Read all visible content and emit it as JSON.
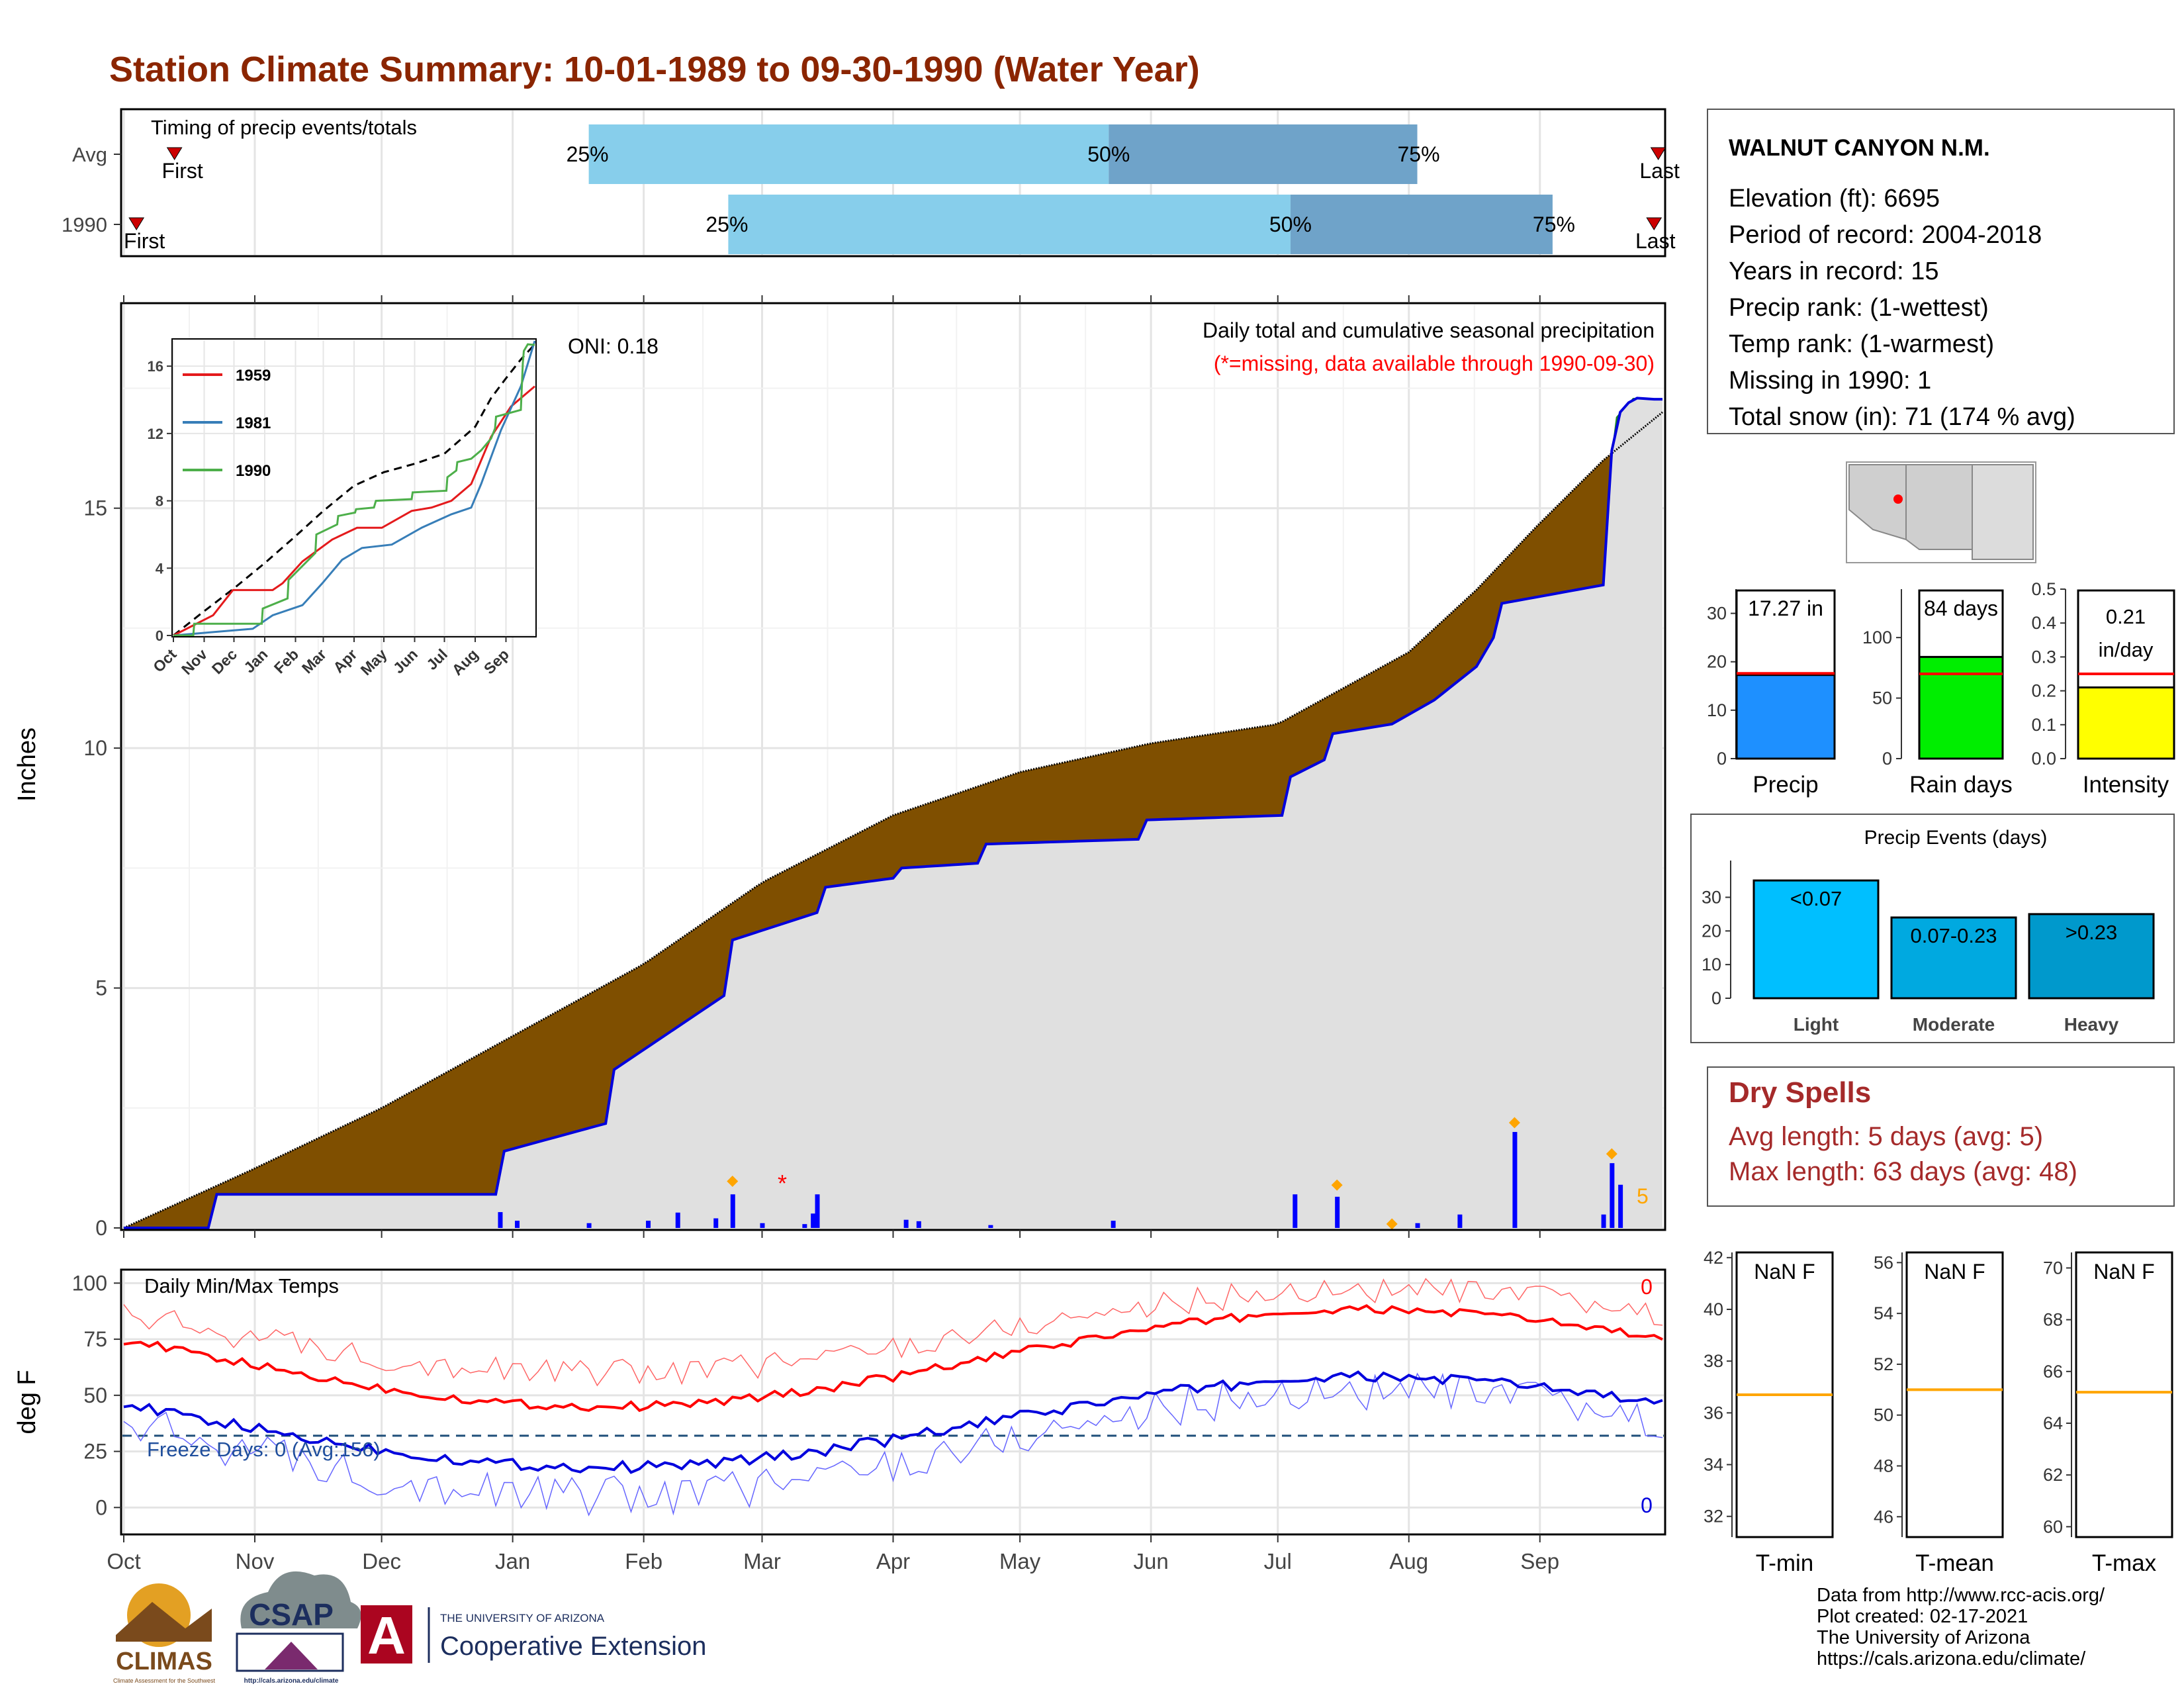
{
  "title": "Station Climate Summary: 10-01-1989 to 09-30-1990 (Water Year)",
  "timing_panel": {
    "label": "Timing of precip events/totals",
    "rows": [
      {
        "name": "Avg",
        "first_label": "First",
        "last_label": "Last",
        "p25_label": "25%",
        "p50_label": "50%",
        "p75_label": "75%",
        "first_day": 12,
        "p25_day": 110,
        "p50_day": 233,
        "p75_day": 306,
        "last_day": 363
      },
      {
        "name": "1990",
        "first_label": "First",
        "last_label": "Last",
        "p25_label": "25%",
        "p50_label": "50%",
        "p75_label": "75%",
        "first_day": 3,
        "p25_day": 143,
        "p50_day": 276,
        "p75_day": 338,
        "last_day": 362
      }
    ],
    "colors": {
      "early": "#87ceeb",
      "late": "#6fa3c9",
      "marker": "#cc0000"
    }
  },
  "precip_panel": {
    "ylabel": "Inches",
    "title": "Daily total and cumulative seasonal precipitation",
    "subtitle": "(*=missing, data available through 1990-09-30)",
    "oni": "ONI: 0.18",
    "y_ticks": [
      "0",
      "5",
      "10",
      "15"
    ],
    "right_count_label": "5",
    "colors": {
      "deficit": "#7f4f00",
      "surplus": "#1e8b1e",
      "area": "#e0e0e0",
      "line": "#0000dd",
      "subtitle": "#ff0000"
    }
  },
  "inset": {
    "series": [
      "1959",
      "1981",
      "1990"
    ],
    "series_colors": [
      "#e41a1c",
      "#377eb8",
      "#4daf4a"
    ],
    "y_ticks": [
      "0",
      "4",
      "8",
      "12",
      "16"
    ],
    "x_ticks": [
      "Oct",
      "Nov",
      "Dec",
      "Jan",
      "Feb",
      "Mar",
      "Apr",
      "May",
      "Jun",
      "Jul",
      "Aug",
      "Sep"
    ]
  },
  "temp_panel": {
    "ylabel": "deg F",
    "title": "Daily Min/Max Temps",
    "freeze_label": "Freeze Days: 0 (Avg:156)",
    "max_count": "0",
    "min_count": "0",
    "y_ticks": [
      "0",
      "25",
      "50",
      "75",
      "100"
    ]
  },
  "months": [
    "Oct",
    "Nov",
    "Dec",
    "Jan",
    "Feb",
    "Mar",
    "Apr",
    "May",
    "Jun",
    "Jul",
    "Aug",
    "Sep"
  ],
  "station": {
    "name": "WALNUT CANYON N.M.",
    "lines": [
      "Elevation (ft): 6695",
      "Period of record: 2004-2018",
      "Years in record: 15",
      "Precip rank:  (1-wettest)",
      "Temp rank:  (1-warmest)",
      "Missing in 1990: 1",
      "Total snow (in): 71 (174 % avg)"
    ]
  },
  "summary_bars": [
    {
      "label": "Precip",
      "value_label": "17.27 in",
      "value": 17.27,
      "avg": 17.6,
      "ymax": 35,
      "ticks": [
        "0",
        "10",
        "20",
        "30"
      ],
      "color": "#1e90ff"
    },
    {
      "label": "Rain days",
      "value_label": "84 days",
      "value": 84,
      "avg": 70,
      "ymax": 140,
      "ticks": [
        "0",
        "50",
        "100"
      ],
      "color": "#00ee00"
    },
    {
      "label": "Intensity",
      "value_label": "0.21 in/day",
      "value": 0.21,
      "avg": 0.25,
      "ymax": 0.5,
      "ticks": [
        "0.0",
        "0.1",
        "0.2",
        "0.3",
        "0.4",
        "0.5"
      ],
      "color": "#ffff00"
    }
  ],
  "precip_events": {
    "title": "Precip Events (days)",
    "ticks": [
      "0",
      "10",
      "20",
      "30"
    ],
    "ymax": 36,
    "bars": [
      {
        "label": "Light",
        "range_label": "<0.07",
        "value": 35,
        "color": "#00bfff"
      },
      {
        "label": "Moderate",
        "range_label": "0.07-0.23",
        "value": 24,
        "color": "#00a9e0"
      },
      {
        "label": "Heavy",
        "range_label": ">0.23",
        "value": 25,
        "color": "#0099cc"
      }
    ]
  },
  "dry_spells": {
    "title": "Dry Spells",
    "avg_line": "Avg length: 5 days (avg: 5)",
    "max_line": "Max length: 63 days (avg: 48)",
    "color": "#a52a2a"
  },
  "temp_boxes": [
    {
      "label": "T-min",
      "value_label": "NaN F",
      "ticks": [
        "32",
        "34",
        "36",
        "38",
        "40",
        "42"
      ],
      "line_value": 36.7,
      "ymin": 31.2,
      "ymax": 42.2
    },
    {
      "label": "T-mean",
      "value_label": "NaN F",
      "ticks": [
        "46",
        "48",
        "50",
        "52",
        "54",
        "56"
      ],
      "line_value": 51.0,
      "ymin": 45.2,
      "ymax": 56.4
    },
    {
      "label": "T-max",
      "value_label": "NaN F",
      "ticks": [
        "60",
        "62",
        "64",
        "66",
        "68",
        "70"
      ],
      "line_value": 65.2,
      "ymin": 59.6,
      "ymax": 70.6
    }
  ],
  "footer": {
    "lines": [
      "Data from http://www.rcc-acis.org/",
      "Plot created: 02-17-2021",
      "The University of Arizona",
      "https://cals.arizona.edu/climate/"
    ]
  },
  "logos": {
    "climas": "CLIMAS",
    "climas_sub": "Climate Assessment for the Southwest",
    "csap": "CSAP",
    "csap_url": "http://cals.arizona.edu/climate",
    "ua_letter": "A",
    "ua_top": "THE UNIVERSITY OF ARIZONA",
    "ua_bottom": "Cooperative Extension"
  },
  "chart_data": {
    "type": "area",
    "title": "Daily total and cumulative seasonal precipitation",
    "ylabel": "Inches",
    "ylim": [
      0,
      18.9
    ],
    "x_months": [
      "Oct",
      "Nov",
      "Dec",
      "Jan",
      "Feb",
      "Mar",
      "Apr",
      "May",
      "Jun",
      "Jul",
      "Aug",
      "Sep"
    ],
    "series": [
      {
        "name": "Avg",
        "x_day": [
          0,
          30,
          61,
          92,
          123,
          151,
          182,
          212,
          243,
          273,
          304,
          320,
          334,
          350,
          364
        ],
        "y": [
          0.0,
          1.2,
          2.5,
          4.0,
          5.5,
          7.2,
          8.6,
          9.5,
          10.1,
          10.5,
          12.0,
          13.3,
          14.6,
          16.0,
          17.0
        ]
      },
      {
        "name": "1990",
        "x_day": [
          0,
          20,
          21,
          89,
          90,
          115,
          116,
          143,
          144,
          165,
          166,
          183,
          184,
          202,
          204,
          240,
          241,
          275,
          276,
          285,
          286,
          300,
          310,
          320,
          324,
          325,
          350,
          352,
          353,
          356,
          357,
          362,
          364
        ],
        "y": [
          0.0,
          0.0,
          0.7,
          0.7,
          1.6,
          2.2,
          3.3,
          4.9,
          6.0,
          6.6,
          7.1,
          7.3,
          7.5,
          7.6,
          8.0,
          8.1,
          8.5,
          8.6,
          9.4,
          9.8,
          10.3,
          10.5,
          11.0,
          11.7,
          12.3,
          13.0,
          13.4,
          16.2,
          16.9,
          17.2,
          17.3,
          17.27,
          17.27
        ]
      }
    ],
    "daily_bars": [
      {
        "x_day": 89,
        "y": 0.33
      },
      {
        "x_day": 93,
        "y": 0.15
      },
      {
        "x_day": 110,
        "y": 0.1
      },
      {
        "x_day": 124,
        "y": 0.15
      },
      {
        "x_day": 131,
        "y": 0.32
      },
      {
        "x_day": 140,
        "y": 0.2
      },
      {
        "x_day": 144,
        "y": 0.7
      },
      {
        "x_day": 151,
        "y": 0.1
      },
      {
        "x_day": 161,
        "y": 0.08
      },
      {
        "x_day": 163,
        "y": 0.3
      },
      {
        "x_day": 164,
        "y": 0.7
      },
      {
        "x_day": 185,
        "y": 0.17
      },
      {
        "x_day": 188,
        "y": 0.14
      },
      {
        "x_day": 205,
        "y": 0.06
      },
      {
        "x_day": 234,
        "y": 0.15
      },
      {
        "x_day": 277,
        "y": 0.7
      },
      {
        "x_day": 287,
        "y": 0.65
      },
      {
        "x_day": 306,
        "y": 0.1
      },
      {
        "x_day": 316,
        "y": 0.28
      },
      {
        "x_day": 329,
        "y": 2.0
      },
      {
        "x_day": 350,
        "y": 0.28
      },
      {
        "x_day": 352,
        "y": 1.35
      },
      {
        "x_day": 354,
        "y": 0.9
      }
    ]
  }
}
